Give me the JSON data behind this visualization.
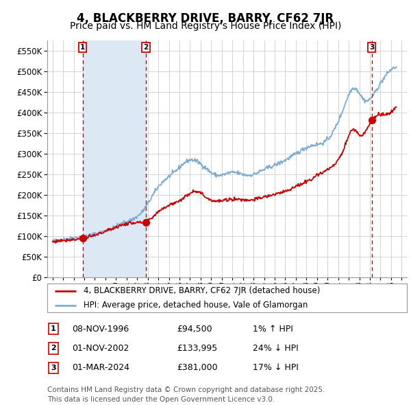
{
  "title": "4, BLACKBERRY DRIVE, BARRY, CF62 7JR",
  "subtitle": "Price paid vs. HM Land Registry's House Price Index (HPI)",
  "xlim": [
    1993.5,
    2027.5
  ],
  "ylim": [
    0,
    575000
  ],
  "yticks": [
    0,
    50000,
    100000,
    150000,
    200000,
    250000,
    300000,
    350000,
    400000,
    450000,
    500000,
    550000
  ],
  "xticks": [
    1994,
    1995,
    1996,
    1997,
    1998,
    1999,
    2000,
    2001,
    2002,
    2003,
    2004,
    2005,
    2006,
    2007,
    2008,
    2009,
    2010,
    2011,
    2012,
    2013,
    2014,
    2015,
    2016,
    2017,
    2018,
    2019,
    2020,
    2021,
    2022,
    2023,
    2024,
    2025,
    2026,
    2027
  ],
  "background_color": "#ffffff",
  "grid_color": "#cccccc",
  "shade_color": "#dde8f5",
  "red_color": "#cc0000",
  "blue_color": "#7eadd4",
  "vline_color": "#cc0000",
  "shade_x1": 1996.85,
  "shade_x2": 2002.83,
  "shade_x3": 2024.17,
  "sale_points": [
    {
      "year": 1996.85,
      "price": 94500,
      "label": "1"
    },
    {
      "year": 2002.83,
      "price": 133995,
      "label": "2"
    },
    {
      "year": 2024.17,
      "price": 381000,
      "label": "3"
    }
  ],
  "legend_entries": [
    {
      "label": "4, BLACKBERRY DRIVE, BARRY, CF62 7JR (detached house)",
      "color": "#cc0000"
    },
    {
      "label": "HPI: Average price, detached house, Vale of Glamorgan",
      "color": "#7eadd4"
    }
  ],
  "table_data": [
    {
      "num": "1",
      "date": "08-NOV-1996",
      "price": "£94,500",
      "hpi": "1% ↑ HPI"
    },
    {
      "num": "2",
      "date": "01-NOV-2002",
      "price": "£133,995",
      "hpi": "24% ↓ HPI"
    },
    {
      "num": "3",
      "date": "01-MAR-2024",
      "price": "£381,000",
      "hpi": "17% ↓ HPI"
    }
  ],
  "footer": "Contains HM Land Registry data © Crown copyright and database right 2025.\nThis data is licensed under the Open Government Licence v3.0.",
  "title_fontsize": 12,
  "subtitle_fontsize": 10,
  "tick_fontsize": 8.5,
  "legend_fontsize": 8.5,
  "table_fontsize": 9,
  "footer_fontsize": 7.5
}
